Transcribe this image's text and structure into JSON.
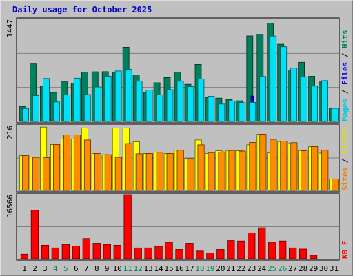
{
  "chart_data": {
    "type": "bar",
    "title": "Daily usage for October 2025",
    "categories": [
      "1",
      "2",
      "3",
      "4",
      "5",
      "6",
      "7",
      "8",
      "9",
      "10",
      "11",
      "12",
      "13",
      "14",
      "15",
      "16",
      "17",
      "18",
      "19",
      "20",
      "21",
      "22",
      "23",
      "24",
      "25",
      "26",
      "27",
      "28",
      "29",
      "30",
      "31"
    ],
    "weekend_days": [
      "4",
      "5",
      "11",
      "12",
      "18",
      "19",
      "25",
      "26"
    ],
    "panels": [
      {
        "id": "pages-files-hits",
        "y_max_label": "1447",
        "ylim": [
          0,
          1447
        ],
        "right_labels": [
          {
            "text": "Hits",
            "color": "#00805c"
          },
          {
            "text": "Files",
            "color": "#0000ff"
          },
          {
            "text": "Pages",
            "color": "#00c8e0"
          }
        ],
        "separator": " / ",
        "series": [
          {
            "name": "Hits",
            "color": "#00805c",
            "values": [
              213,
              814,
              501,
              412,
              568,
              544,
              700,
              703,
              705,
              696,
              1052,
              660,
              412,
              548,
              622,
              700,
              526,
              808,
              340,
              330,
              312,
              292,
              1212,
              1238,
              1392,
              1094,
              716,
              838,
              640,
              559,
              180
            ]
          },
          {
            "name": "Files",
            "color": "#0000ff",
            "values": [
              120,
              130,
              120,
              140,
              150,
              130,
              160,
              170,
              160,
              170,
              180,
              140,
              130,
              130,
              160,
              160,
              130,
              150,
              140,
              140,
              110,
              100,
              360,
              350,
              370,
              390,
              340,
              330,
              260,
              230,
              0
            ]
          },
          {
            "name": "Pages",
            "color": "#00e0f8",
            "values": [
              183,
              368,
              608,
              276,
              375,
              613,
              381,
              489,
              641,
              715,
              737,
              570,
              445,
              376,
              450,
              569,
              493,
              601,
              357,
              246,
              287,
              265,
              270,
              637,
              1210,
              1059,
              756,
              633,
              501,
              578,
              186
            ]
          }
        ]
      },
      {
        "id": "sites-visits",
        "y_max_label": "216",
        "ylim": [
          0,
          216
        ],
        "right_labels": [
          {
            "text": "Visits",
            "color": "#e0e000"
          },
          {
            "text": "Sites",
            "color": "#f08000"
          }
        ],
        "separator": " / ",
        "series": [
          {
            "name": "Visits",
            "color": "#ffff00",
            "values": [
              116,
              111,
              211,
              153,
              171,
              171,
              208,
              123,
              119,
              208,
              208,
              162,
              123,
              127,
              123,
              134,
              106,
              168,
              123,
              132,
              133,
              132,
              152,
              187,
              125,
              163,
              156,
              133,
              146,
              124,
              38
            ]
          },
          {
            "name": "Sites",
            "color": "#ff8c00",
            "values": [
              116,
              110,
              109,
              153,
              185,
              185,
              168,
              123,
              119,
              110,
              156,
              122,
              123,
              127,
              123,
              134,
              106,
              152,
              126,
              128,
              133,
              131,
              160,
              187,
              170,
              164,
              159,
              132,
              146,
              134,
              38
            ]
          }
        ]
      },
      {
        "id": "kbytes",
        "y_max_label": "16566",
        "ylim": [
          0,
          16566
        ],
        "right_labels": [
          {
            "text": "KB F",
            "color": "#ff0000"
          }
        ],
        "separator": "",
        "series": [
          {
            "name": "KB F",
            "color": "#ff0000",
            "values": [
              1200,
              12500,
              3500,
              2800,
              3700,
              3300,
              5200,
              4000,
              3700,
              3500,
              16566,
              2800,
              2800,
              3200,
              4300,
              2400,
              4000,
              2000,
              1500,
              2400,
              4700,
              4600,
              6700,
              8000,
              4300,
              4600,
              2800,
              2500,
              900,
              0,
              0
            ]
          }
        ]
      }
    ]
  }
}
